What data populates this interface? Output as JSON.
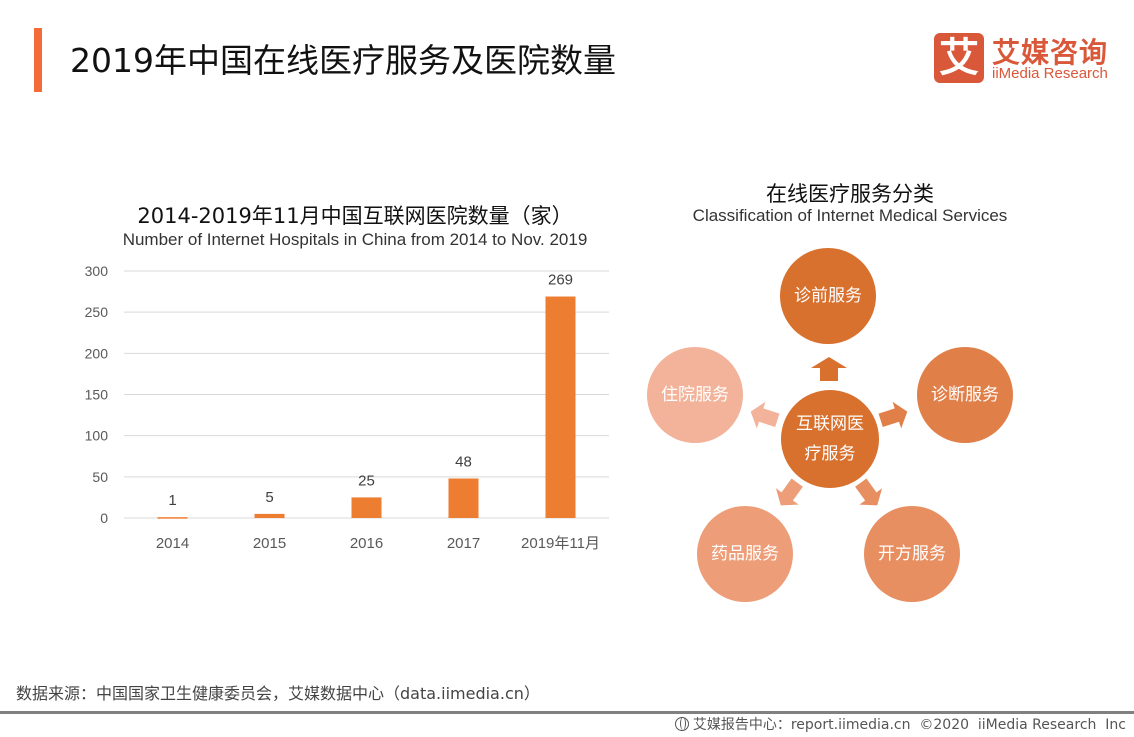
{
  "header": {
    "title": "2019年中国在线医疗服务及医院数量",
    "logo": {
      "mark": "艾",
      "name_cn": "艾媒咨询",
      "name_en": "iiMedia Research",
      "color": "#d9583a"
    },
    "accent_color": "#f26b38"
  },
  "chart_data": {
    "type": "bar",
    "title": "2014-2019年11月中国互联网医院数量（家）",
    "subtitle": "Number of Internet Hospitals in China from 2014 to Nov. 2019",
    "categories": [
      "2014",
      "2015",
      "2016",
      "2017",
      "2019年11月"
    ],
    "values": [
      1,
      5,
      25,
      48,
      269
    ],
    "data_labels": [
      "1",
      "5",
      "25",
      "48",
      "269"
    ],
    "xlabel": "",
    "ylabel": "",
    "ylim": [
      0,
      300
    ],
    "yticks": [
      0,
      50,
      100,
      150,
      200,
      250,
      300
    ],
    "ytick_labels": [
      "0",
      "50",
      "100",
      "150",
      "200",
      "250",
      "300"
    ],
    "grid": true,
    "legend": "none",
    "bar_color": "#ed7d31"
  },
  "diagram": {
    "title_cn": "在线医疗服务分类",
    "title_en": "Classification of Internet Medical Services",
    "center": {
      "label": "互联网医疗服务",
      "color": "#d8702e"
    },
    "nodes": [
      {
        "label": "诊前服务",
        "color": "#d8702e"
      },
      {
        "label": "诊断服务",
        "color": "#e08048"
      },
      {
        "label": "开方服务",
        "color": "#e88f62"
      },
      {
        "label": "药品服务",
        "color": "#ed9e78"
      },
      {
        "label": "住院服务",
        "color": "#f2b39a"
      }
    ]
  },
  "source": "数据来源：中国国家卫生健康委员会，艾媒数据中心（data.iimedia.cn）",
  "footer": {
    "text": "艾媒报告中心：report.iimedia.cn  ©2020  iiMedia Research  Inc"
  }
}
